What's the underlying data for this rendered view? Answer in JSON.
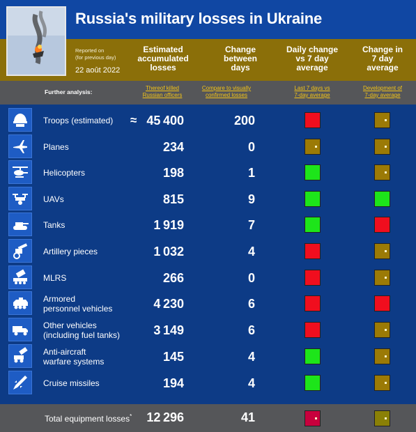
{
  "title": "Russia's military losses in Ukraine",
  "reported": {
    "line1": "Reported on",
    "line2": "(for previous day)",
    "date": "22 août 2022"
  },
  "columns": {
    "accumulated": [
      "Estimated",
      "accumulated",
      "losses"
    ],
    "change_days": [
      "Change",
      "between",
      "days"
    ],
    "daily_change": [
      "Daily change",
      "vs 7 day",
      "average"
    ],
    "change7": [
      "Change in",
      "7 day",
      "average"
    ]
  },
  "analysis": {
    "label": "Further analysis:",
    "link_officers": [
      "Thereof killed",
      "Russian officers"
    ],
    "link_confirmed": [
      "Compare to visually",
      "confirmed losses"
    ],
    "link_last7": [
      "Last 7 days vs",
      "7-day average"
    ],
    "link_development": [
      "Development of",
      "7-day average"
    ]
  },
  "approx_symbol": "≈",
  "rows": [
    {
      "label1": "Troops (estimated)",
      "label2": "",
      "icon": "helmet-icon",
      "value": "45400",
      "change": "200",
      "daily": "red",
      "trend": "gold"
    },
    {
      "label1": "Planes",
      "label2": "",
      "icon": "plane-icon",
      "value": "234",
      "change": "0",
      "daily": "gold",
      "trend": "gold"
    },
    {
      "label1": "Helicopters",
      "label2": "",
      "icon": "helicopter-icon",
      "value": "198",
      "change": "1",
      "daily": "green",
      "trend": "gold"
    },
    {
      "label1": "UAVs",
      "label2": "",
      "icon": "drone-icon",
      "value": "815",
      "change": "9",
      "daily": "green",
      "trend": "green"
    },
    {
      "label1": "Tanks",
      "label2": "",
      "icon": "tank-icon",
      "value": "1919",
      "change": "7",
      "daily": "green",
      "trend": "red"
    },
    {
      "label1": "Artillery pieces",
      "label2": "",
      "icon": "artillery-icon",
      "value": "1032",
      "change": "4",
      "daily": "red",
      "trend": "gold"
    },
    {
      "label1": "MLRS",
      "label2": "",
      "icon": "mlrs-icon",
      "value": "266",
      "change": "0",
      "daily": "red",
      "trend": "gold"
    },
    {
      "label1": "Armored",
      "label2": "personnel vehicles",
      "icon": "apc-icon",
      "value": "4230",
      "change": "6",
      "daily": "red",
      "trend": "red"
    },
    {
      "label1": "Other vehicles",
      "label2": "(including fuel tanks)",
      "icon": "truck-icon",
      "value": "3149",
      "change": "6",
      "daily": "red",
      "trend": "gold"
    },
    {
      "label1": "Anti-aircraft",
      "label2": "warfare systems",
      "icon": "anti-aircraft-icon",
      "value": "145",
      "change": "4",
      "daily": "green",
      "trend": "gold"
    },
    {
      "label1": "Cruise missiles",
      "label2": "",
      "icon": "missile-icon",
      "value": "194",
      "change": "4",
      "daily": "green",
      "trend": "gold"
    }
  ],
  "total": {
    "label": "Total equipment losses",
    "footnote": "*",
    "value": "12296",
    "change": "41",
    "daily": "dark",
    "trend": "olive"
  }
}
